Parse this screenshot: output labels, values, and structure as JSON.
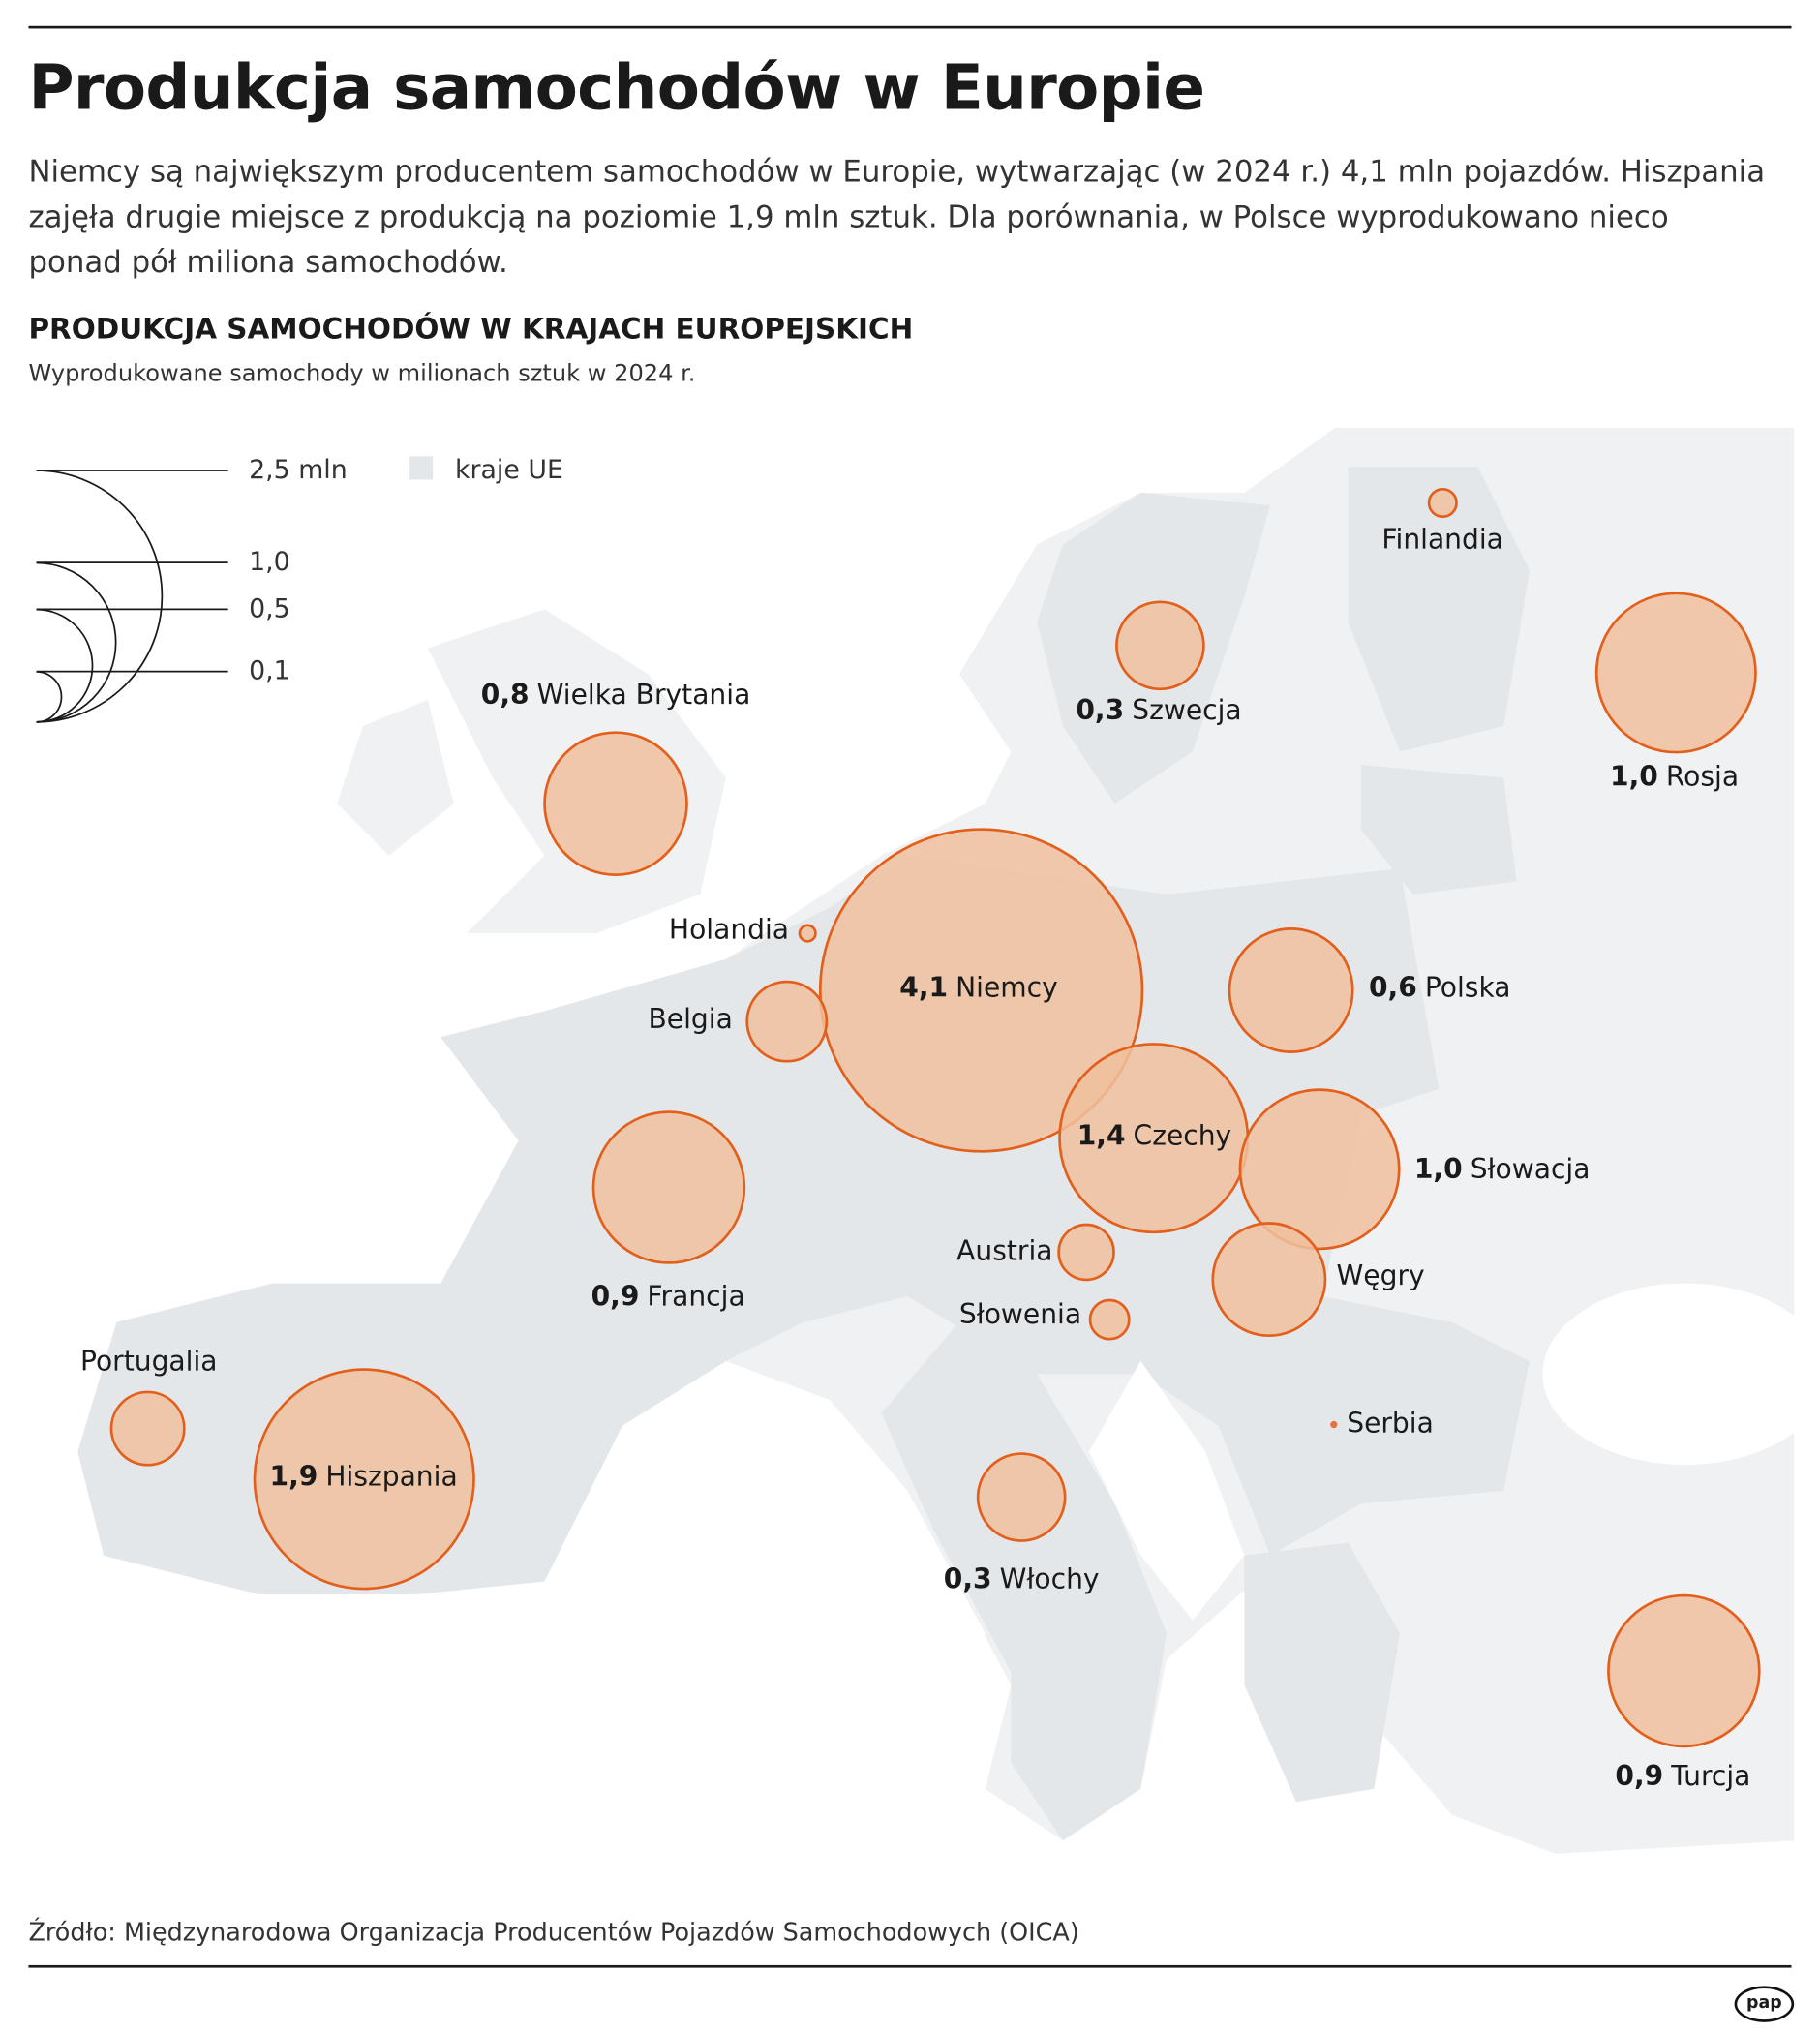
{
  "title": "Produkcja samochodów w Europie",
  "lead": "Niemcy są największym producentem samochodów w Europie, wytwarzając (w 2024 r.) 4,1 mln pojazdów. Hiszpania zajęła drugie miejsce z produkcją na poziomie 1,9 mln sztuk. Dla porównania, w Polsce wyprodukowano nieco ponad pół miliona samochodów.",
  "source": "Źródło: Międzynarodowa Organizacja Producentów Pojazdów Samochodowych (OICA)",
  "logo": "pap",
  "colors": {
    "bubble_fill": "#f0bf9e",
    "bubble_stroke": "#e35f1c",
    "eu_land": "#e4e7ea",
    "other_land": "#eff1f3"
  },
  "chart_data": {
    "type": "bubble-map",
    "title": "PRODUKCJA SAMOCHODÓW W KRAJACH EUROPEJSKICH",
    "subtitle": "Wyprodukowane samochody w milionach sztuk w 2024 r.",
    "unit": "mln",
    "legend": {
      "sizes": [
        "2,5 mln",
        "1,0",
        "0,5",
        "0,1"
      ],
      "size_values": [
        2.5,
        1.0,
        0.5,
        0.1
      ],
      "eu_label": "kraje UE"
    },
    "points": [
      {
        "name": "Finlandia",
        "label": "",
        "value": 0.03
      },
      {
        "name": "Szwecja",
        "label": "0,3",
        "value": 0.3
      },
      {
        "name": "Rosja",
        "label": "1,0",
        "value": 1.0
      },
      {
        "name": "Wielka Brytania",
        "label": "0,8",
        "value": 0.8
      },
      {
        "name": "Holandia",
        "label": "",
        "value": 0.01
      },
      {
        "name": "Niemcy",
        "label": "4,1",
        "value": 4.1
      },
      {
        "name": "Belgia",
        "label": "",
        "value": 0.25
      },
      {
        "name": "Polska",
        "label": "0,6",
        "value": 0.6
      },
      {
        "name": "Czechy",
        "label": "1,4",
        "value": 1.4
      },
      {
        "name": "Słowacja",
        "label": "1,0",
        "value": 1.0
      },
      {
        "name": "Francja",
        "label": "0,9",
        "value": 0.9
      },
      {
        "name": "Austria",
        "label": "",
        "value": 0.12
      },
      {
        "name": "Węgry",
        "label": "",
        "value": 0.5
      },
      {
        "name": "Słowenia",
        "label": "",
        "value": 0.06
      },
      {
        "name": "Portugalia",
        "label": "",
        "value": 0.21
      },
      {
        "name": "Hiszpania",
        "label": "1,9",
        "value": 1.9
      },
      {
        "name": "Włochy",
        "label": "0,3",
        "value": 0.3
      },
      {
        "name": "Serbia",
        "label": "",
        "value": 0.002
      },
      {
        "name": "Turcja",
        "label": "0,9",
        "value": 0.9
      }
    ]
  }
}
